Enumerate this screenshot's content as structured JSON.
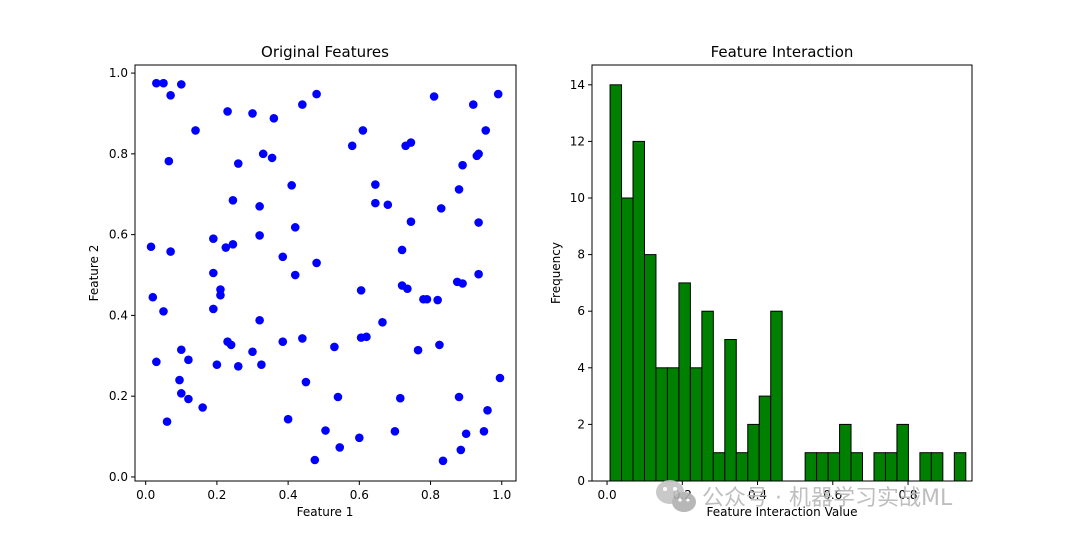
{
  "chart_data": [
    {
      "type": "scatter",
      "title": "Original Features",
      "xlabel": "Feature 1",
      "ylabel": "Feature 2",
      "xlim": [
        -0.03,
        1.04
      ],
      "ylim": [
        -0.01,
        1.02
      ],
      "x_ticks": [
        "0.0",
        "0.2",
        "0.4",
        "0.6",
        "0.8",
        "1.0"
      ],
      "y_ticks": [
        "0.0",
        "0.2",
        "0.4",
        "0.6",
        "0.8",
        "1.0"
      ],
      "grid": false,
      "color": "#0000ff",
      "points": [
        [
          0.03,
          0.975
        ],
        [
          0.05,
          0.975
        ],
        [
          0.1,
          0.972
        ],
        [
          0.07,
          0.945
        ],
        [
          0.14,
          0.858
        ],
        [
          0.23,
          0.905
        ],
        [
          0.3,
          0.9
        ],
        [
          0.36,
          0.888
        ],
        [
          0.44,
          0.922
        ],
        [
          0.48,
          0.948
        ],
        [
          0.61,
          0.858
        ],
        [
          0.58,
          0.82
        ],
        [
          0.73,
          0.82
        ],
        [
          0.745,
          0.828
        ],
        [
          0.81,
          0.942
        ],
        [
          0.92,
          0.922
        ],
        [
          0.99,
          0.948
        ],
        [
          0.955,
          0.858
        ],
        [
          0.935,
          0.8
        ],
        [
          0.93,
          0.795
        ],
        [
          0.89,
          0.772
        ],
        [
          0.88,
          0.712
        ],
        [
          0.065,
          0.782
        ],
        [
          0.26,
          0.776
        ],
        [
          0.33,
          0.8
        ],
        [
          0.355,
          0.79
        ],
        [
          0.41,
          0.722
        ],
        [
          0.645,
          0.724
        ],
        [
          0.645,
          0.678
        ],
        [
          0.68,
          0.674
        ],
        [
          0.83,
          0.665
        ],
        [
          0.245,
          0.685
        ],
        [
          0.32,
          0.67
        ],
        [
          0.42,
          0.618
        ],
        [
          0.745,
          0.632
        ],
        [
          0.935,
          0.63
        ],
        [
          0.015,
          0.57
        ],
        [
          0.07,
          0.558
        ],
        [
          0.19,
          0.59
        ],
        [
          0.225,
          0.568
        ],
        [
          0.245,
          0.576
        ],
        [
          0.32,
          0.598
        ],
        [
          0.72,
          0.562
        ],
        [
          0.385,
          0.545
        ],
        [
          0.48,
          0.53
        ],
        [
          0.19,
          0.505
        ],
        [
          0.42,
          0.5
        ],
        [
          0.935,
          0.502
        ],
        [
          0.21,
          0.464
        ],
        [
          0.21,
          0.45
        ],
        [
          0.605,
          0.462
        ],
        [
          0.72,
          0.474
        ],
        [
          0.735,
          0.466
        ],
        [
          0.78,
          0.44
        ],
        [
          0.79,
          0.44
        ],
        [
          0.82,
          0.438
        ],
        [
          0.875,
          0.483
        ],
        [
          0.89,
          0.479
        ],
        [
          0.02,
          0.445
        ],
        [
          0.05,
          0.41
        ],
        [
          0.19,
          0.416
        ],
        [
          0.32,
          0.388
        ],
        [
          0.665,
          0.383
        ],
        [
          0.605,
          0.345
        ],
        [
          0.62,
          0.347
        ],
        [
          0.23,
          0.335
        ],
        [
          0.24,
          0.327
        ],
        [
          0.385,
          0.335
        ],
        [
          0.44,
          0.343
        ],
        [
          0.53,
          0.322
        ],
        [
          0.765,
          0.314
        ],
        [
          0.825,
          0.327
        ],
        [
          0.03,
          0.285
        ],
        [
          0.1,
          0.315
        ],
        [
          0.12,
          0.29
        ],
        [
          0.2,
          0.278
        ],
        [
          0.26,
          0.274
        ],
        [
          0.3,
          0.31
        ],
        [
          0.325,
          0.278
        ],
        [
          0.095,
          0.24
        ],
        [
          0.1,
          0.207
        ],
        [
          0.12,
          0.193
        ],
        [
          0.45,
          0.235
        ],
        [
          0.16,
          0.172
        ],
        [
          0.06,
          0.137
        ],
        [
          0.54,
          0.198
        ],
        [
          0.715,
          0.195
        ],
        [
          0.88,
          0.198
        ],
        [
          0.995,
          0.245
        ],
        [
          0.96,
          0.165
        ],
        [
          0.4,
          0.143
        ],
        [
          0.505,
          0.115
        ],
        [
          0.6,
          0.097
        ],
        [
          0.7,
          0.113
        ],
        [
          0.9,
          0.107
        ],
        [
          0.95,
          0.113
        ],
        [
          0.545,
          0.073
        ],
        [
          0.885,
          0.067
        ],
        [
          0.475,
          0.042
        ],
        [
          0.835,
          0.04
        ]
      ]
    },
    {
      "type": "bar",
      "title": "Feature Interaction",
      "xlabel": "Feature Interaction Value",
      "ylabel": "Frequency",
      "xlim": [
        -0.04,
        0.97
      ],
      "ylim": [
        0,
        14.7
      ],
      "x_ticks": [
        "0.0",
        "0.2",
        "0.4",
        "0.6",
        "0.8"
      ],
      "y_ticks": [
        "0",
        "2",
        "4",
        "6",
        "8",
        "10",
        "12",
        "14"
      ],
      "grid": false,
      "bar_color": "#008000",
      "edge_color": "#000000",
      "bin_start": 0.008,
      "bin_width": 0.0305,
      "values": [
        14,
        10,
        12,
        8,
        4,
        4,
        7,
        4,
        6,
        1,
        5,
        1,
        2,
        3,
        6,
        0,
        0,
        1,
        1,
        1,
        2,
        1,
        0,
        1,
        1,
        2,
        0,
        1,
        1,
        0,
        1
      ]
    }
  ],
  "watermark": {
    "text": "公众号 · 机器学习实战ML"
  }
}
